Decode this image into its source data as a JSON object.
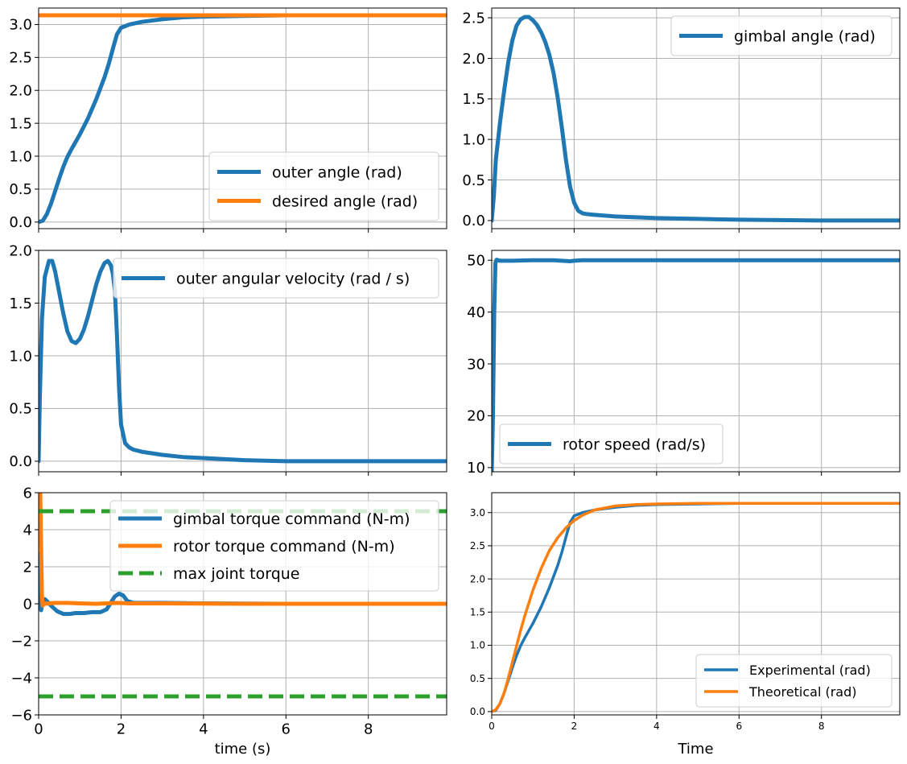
{
  "chart_data": [
    {
      "type": "line",
      "title": "",
      "xlabel": "",
      "ylabel": "",
      "xlim": [
        0,
        9.9
      ],
      "ylim": [
        -0.1,
        3.25
      ],
      "grid": true,
      "show_xticklabels": false,
      "xticks": [
        0,
        2,
        4,
        6,
        8
      ],
      "yticks": [
        0.0,
        0.5,
        1.0,
        1.5,
        2.0,
        2.5,
        3.0
      ],
      "ytick_labels": [
        "0.0",
        "0.5",
        "1.0",
        "1.5",
        "2.0",
        "2.5",
        "3.0"
      ],
      "legend_position": "lower-right",
      "series": [
        {
          "name": "outer angle (rad)",
          "color": "#1f77b4",
          "style": "solid",
          "x": [
            0,
            0.1,
            0.2,
            0.3,
            0.4,
            0.5,
            0.6,
            0.7,
            0.8,
            1.0,
            1.2,
            1.4,
            1.6,
            1.7,
            1.8,
            1.9,
            2.0,
            2.2,
            2.5,
            3.0,
            3.5,
            4.0,
            5.0,
            6.0,
            8.0,
            9.9
          ],
          "y": [
            0.0,
            0.02,
            0.12,
            0.28,
            0.47,
            0.66,
            0.84,
            0.99,
            1.11,
            1.33,
            1.58,
            1.87,
            2.2,
            2.4,
            2.63,
            2.85,
            2.95,
            3.0,
            3.04,
            3.08,
            3.11,
            3.12,
            3.13,
            3.14,
            3.14,
            3.14
          ]
        },
        {
          "name": "desired angle (rad)",
          "color": "#ff7f0e",
          "style": "solid",
          "x": [
            0,
            9.9
          ],
          "y": [
            3.14,
            3.14
          ]
        }
      ]
    },
    {
      "type": "line",
      "title": "",
      "xlabel": "",
      "ylabel": "",
      "xlim": [
        0,
        9.9
      ],
      "ylim": [
        -0.1,
        2.62
      ],
      "grid": true,
      "show_xticklabels": false,
      "xticks": [
        0,
        2,
        4,
        6,
        8
      ],
      "yticks": [
        0.0,
        0.5,
        1.0,
        1.5,
        2.0,
        2.5
      ],
      "ytick_labels": [
        "0.0",
        "0.5",
        "1.0",
        "1.5",
        "2.0",
        "2.5"
      ],
      "legend_position": "upper-right",
      "series": [
        {
          "name": "gimbal angle (rad)",
          "color": "#1f77b4",
          "style": "solid",
          "x": [
            0,
            0.05,
            0.1,
            0.2,
            0.3,
            0.4,
            0.5,
            0.6,
            0.7,
            0.8,
            0.9,
            1.0,
            1.1,
            1.2,
            1.3,
            1.4,
            1.5,
            1.6,
            1.7,
            1.8,
            1.9,
            2.0,
            2.1,
            2.2,
            2.3,
            2.5,
            3.0,
            4.0,
            5.0,
            6.0,
            8.0,
            9.9
          ],
          "y": [
            0.0,
            0.3,
            0.75,
            1.2,
            1.6,
            1.95,
            2.22,
            2.4,
            2.48,
            2.51,
            2.51,
            2.47,
            2.41,
            2.32,
            2.2,
            2.04,
            1.82,
            1.52,
            1.15,
            0.75,
            0.42,
            0.22,
            0.12,
            0.09,
            0.08,
            0.07,
            0.05,
            0.03,
            0.02,
            0.01,
            0.0,
            0.0
          ]
        }
      ]
    },
    {
      "type": "line",
      "title": "",
      "xlabel": "",
      "ylabel": "",
      "xlim": [
        0,
        9.9
      ],
      "ylim": [
        -0.1,
        2.0
      ],
      "grid": true,
      "show_xticklabels": false,
      "xticks": [
        0,
        2,
        4,
        6,
        8
      ],
      "yticks": [
        0.0,
        0.5,
        1.0,
        1.5,
        2.0
      ],
      "ytick_labels": [
        "0.0",
        "0.5",
        "1.0",
        "1.5",
        "2.0"
      ],
      "legend_position": "upper-right",
      "series": [
        {
          "name": "outer angular velocity (rad / s)",
          "color": "#1f77b4",
          "style": "solid",
          "x": [
            0,
            0.03,
            0.08,
            0.15,
            0.25,
            0.33,
            0.4,
            0.5,
            0.6,
            0.7,
            0.8,
            0.9,
            1.0,
            1.1,
            1.2,
            1.3,
            1.4,
            1.5,
            1.6,
            1.68,
            1.75,
            1.8,
            1.85,
            1.9,
            1.95,
            2.0,
            2.1,
            2.2,
            2.3,
            2.5,
            3.0,
            3.5,
            4.0,
            5.0,
            6.0,
            7.0,
            8.0,
            9.9
          ],
          "y": [
            0.0,
            0.6,
            1.35,
            1.75,
            1.9,
            1.9,
            1.8,
            1.6,
            1.4,
            1.23,
            1.14,
            1.12,
            1.16,
            1.25,
            1.38,
            1.53,
            1.68,
            1.8,
            1.88,
            1.9,
            1.86,
            1.78,
            1.62,
            1.2,
            0.7,
            0.35,
            0.17,
            0.13,
            0.11,
            0.09,
            0.06,
            0.04,
            0.03,
            0.01,
            0.0,
            0.0,
            0.0,
            0.0
          ]
        }
      ]
    },
    {
      "type": "line",
      "title": "",
      "xlabel": "",
      "ylabel": "",
      "xlim": [
        0,
        9.9
      ],
      "ylim": [
        9.2,
        51.9
      ],
      "grid": true,
      "show_xticklabels": false,
      "xticks": [
        0,
        2,
        4,
        6,
        8
      ],
      "yticks": [
        10,
        20,
        30,
        40,
        50
      ],
      "ytick_labels": [
        "10",
        "20",
        "30",
        "40",
        "50"
      ],
      "legend_position": "lower-left",
      "series": [
        {
          "name": "rotor speed (rad/s)",
          "color": "#1f77b4",
          "style": "solid",
          "x": [
            0,
            0.03,
            0.06,
            0.09,
            0.12,
            0.15,
            0.2,
            0.3,
            0.5,
            1.0,
            1.5,
            1.9,
            2.0,
            2.2,
            3.0,
            5.0,
            7.0,
            9.9
          ],
          "y": [
            9.2,
            20,
            40,
            49.5,
            50.1,
            50.0,
            49.9,
            49.9,
            49.9,
            50.0,
            50.0,
            49.8,
            49.9,
            50.0,
            50.0,
            50.0,
            50.0,
            50.0
          ]
        }
      ]
    },
    {
      "type": "line",
      "title": "",
      "xlabel": "time (s)",
      "ylabel": "",
      "xlim": [
        0,
        9.9
      ],
      "ylim": [
        -6,
        6
      ],
      "grid": true,
      "show_xticklabels": true,
      "xticks": [
        0,
        2,
        4,
        6,
        8
      ],
      "yticks": [
        -6,
        -4,
        -2,
        0,
        2,
        4,
        6
      ],
      "ytick_labels": [
        "−6",
        "−4",
        "−2",
        "0",
        "2",
        "4",
        "6"
      ],
      "legend_position": "upper-right",
      "series": [
        {
          "name": "gimbal torque command (N-m)",
          "color": "#1f77b4",
          "style": "solid",
          "x": [
            0,
            0.03,
            0.06,
            0.1,
            0.15,
            0.2,
            0.3,
            0.45,
            0.6,
            0.75,
            0.9,
            1.1,
            1.3,
            1.5,
            1.65,
            1.75,
            1.85,
            1.95,
            2.05,
            2.15,
            2.3,
            2.6,
            3.0,
            4.0,
            6.0,
            9.9
          ],
          "y": [
            2.7,
            0.2,
            -0.35,
            0.2,
            0.25,
            0.15,
            -0.1,
            -0.4,
            -0.55,
            -0.55,
            -0.5,
            -0.5,
            -0.45,
            -0.45,
            -0.3,
            0.05,
            0.4,
            0.55,
            0.45,
            0.15,
            0.05,
            0.05,
            0.05,
            0.02,
            0.0,
            0.0
          ]
        },
        {
          "name": "rotor torque command (N-m)",
          "color": "#ff7f0e",
          "style": "solid",
          "x": [
            0,
            0.04,
            0.06,
            0.08,
            0.1,
            0.13,
            0.18,
            0.25,
            0.4,
            0.7,
            1.0,
            1.4,
            1.9,
            2.2,
            3.0,
            5.0,
            9.9
          ],
          "y": [
            6.0,
            6.0,
            3.0,
            0.5,
            -0.1,
            0.05,
            0.0,
            0.02,
            0.05,
            0.05,
            0.02,
            0.0,
            0.05,
            0.02,
            0.02,
            0.0,
            0.0
          ]
        },
        {
          "name": "max joint torque",
          "color": "#2ca02c",
          "style": "dashed",
          "x": [
            0,
            9.9
          ],
          "y": [
            5,
            5
          ]
        },
        {
          "name": "",
          "color": "#2ca02c",
          "style": "dashed",
          "x": [
            0,
            9.9
          ],
          "y": [
            -5,
            -5
          ]
        }
      ]
    },
    {
      "type": "line",
      "title": "",
      "xlabel": "Time",
      "ylabel": "",
      "xlim": [
        0,
        9.9
      ],
      "ylim": [
        -0.05,
        3.3
      ],
      "grid": true,
      "show_xticklabels": true,
      "xticks": [
        0,
        2,
        4,
        6,
        8
      ],
      "yticks": [
        0.0,
        0.5,
        1.0,
        1.5,
        2.0,
        2.5,
        3.0
      ],
      "ytick_labels": [
        "0.0",
        "0.5",
        "1.0",
        "1.5",
        "2.0",
        "2.5",
        "3.0"
      ],
      "legend_position": "lower-right",
      "series": [
        {
          "name": "Experimental (rad)",
          "color": "#1f77b4",
          "style": "solid",
          "x": [
            0,
            0.1,
            0.2,
            0.3,
            0.4,
            0.5,
            0.6,
            0.7,
            0.8,
            1.0,
            1.2,
            1.4,
            1.6,
            1.7,
            1.8,
            1.9,
            2.0,
            2.2,
            2.5,
            3.0,
            3.5,
            4.0,
            5.0,
            6.0,
            8.0,
            9.9
          ],
          "y": [
            0.0,
            0.02,
            0.12,
            0.28,
            0.47,
            0.66,
            0.84,
            0.99,
            1.11,
            1.33,
            1.58,
            1.87,
            2.2,
            2.4,
            2.63,
            2.85,
            2.95,
            3.0,
            3.04,
            3.08,
            3.11,
            3.12,
            3.13,
            3.14,
            3.14,
            3.14
          ]
        },
        {
          "name": "Theoretical (rad)",
          "color": "#ff7f0e",
          "style": "solid",
          "x": [
            0,
            0.1,
            0.2,
            0.3,
            0.4,
            0.5,
            0.6,
            0.7,
            0.8,
            1.0,
            1.2,
            1.4,
            1.6,
            1.8,
            2.0,
            2.2,
            2.5,
            3.0,
            3.5,
            4.0,
            5.0,
            6.0,
            8.0,
            9.9
          ],
          "y": [
            0.0,
            0.03,
            0.12,
            0.28,
            0.5,
            0.74,
            0.98,
            1.22,
            1.44,
            1.83,
            2.16,
            2.43,
            2.62,
            2.77,
            2.88,
            2.96,
            3.04,
            3.1,
            3.12,
            3.13,
            3.14,
            3.14,
            3.14,
            3.14
          ]
        }
      ]
    }
  ]
}
